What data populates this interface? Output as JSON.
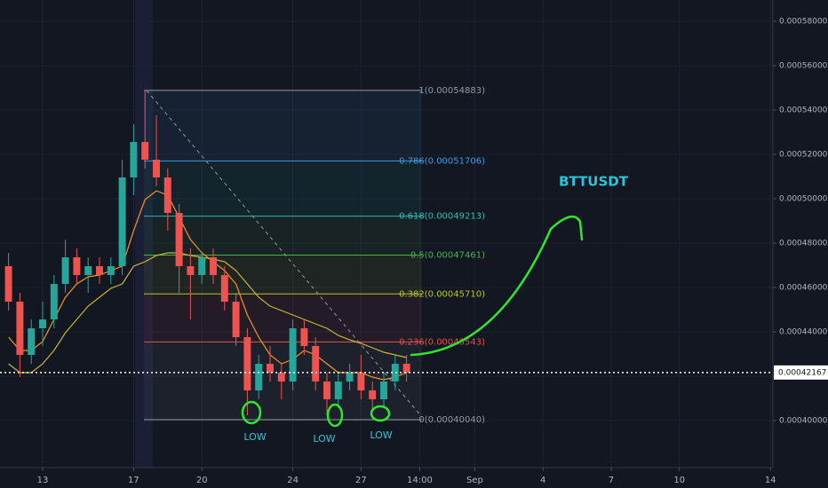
{
  "chart_data": {
    "type": "candlestick",
    "title": "BTTUSDT",
    "annotations": [
      "LOW",
      "LOW",
      "LOW"
    ],
    "xlim": [
      11.125,
      45.11
    ],
    "xticks": [
      13,
      17,
      20,
      24,
      27,
      {
        "value": 29.58,
        "label": "14:00"
      },
      {
        "value": 32,
        "label": "Sep"
      },
      {
        "value": 35,
        "label": "4"
      },
      {
        "value": 38,
        "label": "7"
      },
      {
        "value": 41,
        "label": "10"
      },
      {
        "value": 45,
        "label": "14"
      }
    ],
    "ylim": [
      0.0003788,
      0.0005896
    ],
    "yticks": [
      {
        "value": 0.0004,
        "label": "0.00040000"
      },
      {
        "value": 0.00042,
        "label": "0.00042000"
      },
      {
        "value": 0.00044,
        "label": "0.00044000"
      },
      {
        "value": 0.00046,
        "label": "0.00046000"
      },
      {
        "value": 0.00048,
        "label": "0.00048000"
      },
      {
        "value": 0.0005,
        "label": "0.00050000"
      },
      {
        "value": 0.00052,
        "label": "0.00052000"
      },
      {
        "value": 0.00054,
        "label": "0.00054000"
      },
      {
        "value": 0.00056,
        "label": "0.00056000"
      },
      {
        "value": 0.00058,
        "label": "0.00058000"
      }
    ],
    "grid": true,
    "last_price": 0.00042167,
    "up_color": "#26a69a",
    "down_color": "#ef5350",
    "x": [
      11.5,
      12,
      12.5,
      13,
      13.5,
      14,
      14.5,
      15,
      15.5,
      16,
      16.5,
      17,
      17.5,
      18,
      18.5,
      19,
      19.5,
      20,
      20.5,
      21,
      21.5,
      22,
      22.5,
      23,
      23.5,
      24,
      24.5,
      25,
      25.5,
      26,
      26.5,
      27,
      27.5,
      28,
      28.5,
      29
    ],
    "open": [
      0.0004696,
      0.0004536,
      0.0004296,
      0.0004416,
      0.0004456,
      0.0004616,
      0.0004736,
      0.0004656,
      0.0004696,
      0.0004656,
      0.0004696,
      0.0005096,
      0.0005256,
      0.0005176,
      0.0005096,
      0.0004936,
      0.0004696,
      0.0004656,
      0.0004736,
      0.0004656,
      0.0004536,
      0.0004376,
      0.0004136,
      0.0004256,
      0.0004216,
      0.0004176,
      0.0004416,
      0.0004336,
      0.0004176,
      0.0004096,
      0.0004176,
      0.0004216,
      0.0004136,
      0.0004096,
      0.0004176,
      0.0004256
    ],
    "high": [
      0.0004756,
      0.0004576,
      0.0004456,
      0.0004536,
      0.0004656,
      0.0004816,
      0.0004776,
      0.0004736,
      0.0004736,
      0.0004736,
      0.0005176,
      0.0005336,
      0.00054883,
      0.0005376,
      0.0005136,
      0.0004976,
      0.0004776,
      0.0004756,
      0.0004776,
      0.0004696,
      0.0004576,
      0.0004416,
      0.0004296,
      0.0004336,
      0.0004256,
      0.0004456,
      0.0004456,
      0.0004376,
      0.0004216,
      0.0004216,
      0.0004256,
      0.0004296,
      0.0004176,
      0.0004216,
      0.0004296,
      0.0004296
    ],
    "low": [
      0.0004496,
      0.0004196,
      0.0004256,
      0.0004336,
      0.0004416,
      0.0004576,
      0.0004616,
      0.0004576,
      0.0004616,
      0.0004616,
      0.0004656,
      0.0005016,
      0.0005136,
      0.0005056,
      0.0004856,
      0.0004576,
      0.0004456,
      0.0004616,
      0.0004616,
      0.0004496,
      0.0004336,
      0.0004024,
      0.0004096,
      0.0004176,
      0.0004096,
      0.0004136,
      0.0004296,
      0.0004136,
      0.0004024,
      0.0004056,
      0.0004136,
      0.0004096,
      0.0004036,
      0.0004056,
      0.0004136,
      0.0004176
    ],
    "close": [
      0.0004536,
      0.0004296,
      0.0004416,
      0.0004456,
      0.0004616,
      0.0004736,
      0.0004656,
      0.0004696,
      0.0004656,
      0.0004696,
      0.0005096,
      0.0005256,
      0.0005176,
      0.0005096,
      0.0004936,
      0.0004696,
      0.0004656,
      0.0004736,
      0.0004656,
      0.0004536,
      0.0004376,
      0.0004136,
      0.0004256,
      0.0004216,
      0.0004176,
      0.0004416,
      0.0004336,
      0.0004176,
      0.0004096,
      0.0004176,
      0.0004216,
      0.0004136,
      0.0004096,
      0.0004176,
      0.0004256,
      0.00042167
    ],
    "lines": [
      {
        "color": "#f7931e",
        "values": [
          0.0004376,
          0.0004316,
          0.0004316,
          0.0004356,
          0.0004456,
          0.0004556,
          0.0004616,
          0.0004648,
          0.0004656,
          0.0004676,
          0.0004696,
          0.0004856,
          0.0004996,
          0.0005036,
          0.0005016,
          0.0004916,
          0.0004816,
          0.0004756,
          0.0004716,
          0.0004676,
          0.0004616,
          0.0004476,
          0.0004376,
          0.0004296,
          0.0004256,
          0.0004276,
          0.0004316,
          0.0004296,
          0.0004256,
          0.0004216,
          0.0004216,
          0.0004216,
          0.0004196,
          0.0004184,
          0.0004196,
          0.0004216
        ]
      },
      {
        "color": "#c9b530",
        "values": [
          0.0004256,
          0.0004216,
          0.0004216,
          0.0004256,
          0.0004316,
          0.0004396,
          0.0004456,
          0.0004516,
          0.0004556,
          0.0004596,
          0.0004616,
          0.0004696,
          0.0004716,
          0.0004744,
          0.0004756,
          0.0004756,
          0.0004744,
          0.0004736,
          0.0004728,
          0.0004716,
          0.0004676,
          0.0004616,
          0.0004556,
          0.0004516,
          0.0004496,
          0.0004476,
          0.0004456,
          0.0004436,
          0.0004416,
          0.0004384,
          0.0004364,
          0.0004348,
          0.0004328,
          0.0004308,
          0.0004296,
          0.0004284
        ]
      }
    ],
    "fib": [
      {
        "value": 0.00054883,
        "label": "1(0.00054883)",
        "color": "#9598a1"
      },
      {
        "value": 0.00051706,
        "label": "0.786(0.00051706)",
        "color": "#3d9be0"
      },
      {
        "value": 0.00049213,
        "label": "0.618(0.00049213)",
        "color": "#2bbbad"
      },
      {
        "value": 0.00047461,
        "label": "0.5(0.00047461)",
        "color": "#4caf50"
      },
      {
        "value": 0.0004571,
        "label": "0.382(0.00045710)",
        "color": "#b8c62a"
      },
      {
        "value": 0.00043543,
        "label": "0.236(0.00043543)",
        "color": "#e0524d"
      },
      {
        "value": 0.0004004,
        "label": "0(0.00040040)",
        "color": "#9598a1"
      }
    ]
  }
}
